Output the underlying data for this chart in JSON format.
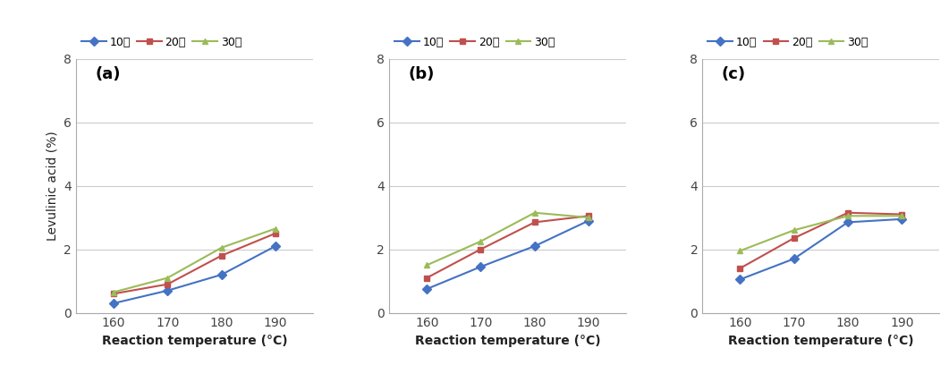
{
  "x": [
    160,
    170,
    180,
    190
  ],
  "subplots": [
    {
      "label": "(a)",
      "series": {
        "10분": [
          0.3,
          0.7,
          1.2,
          2.1
        ],
        "20분": [
          0.6,
          0.9,
          1.8,
          2.5
        ],
        "30분": [
          0.65,
          1.1,
          2.05,
          2.65
        ]
      }
    },
    {
      "label": "(b)",
      "series": {
        "10분": [
          0.75,
          1.45,
          2.1,
          2.9
        ],
        "20분": [
          1.1,
          2.0,
          2.85,
          3.05
        ],
        "30분": [
          1.5,
          2.25,
          3.15,
          3.0
        ]
      }
    },
    {
      "label": "(c)",
      "series": {
        "10분": [
          1.05,
          1.7,
          2.85,
          2.95
        ],
        "20분": [
          1.4,
          2.35,
          3.15,
          3.1
        ],
        "30분": [
          1.95,
          2.6,
          3.05,
          3.05
        ]
      }
    }
  ],
  "colors": {
    "10분": "#4472C4",
    "20분": "#C0504D",
    "30분": "#9BBB59"
  },
  "markers": {
    "10분": "D",
    "20분": "s",
    "30분": "^"
  },
  "xlabel": "Reaction temperature (°C)",
  "ylabel": "Levulinic acid (%)",
  "ylim": [
    0,
    8
  ],
  "yticks": [
    0,
    2,
    4,
    6,
    8
  ],
  "xticks": [
    160,
    170,
    180,
    190
  ],
  "legend_labels": [
    "10분",
    "20분",
    "30분"
  ],
  "background_color": "#ffffff",
  "grid_color": "#cccccc",
  "spine_color": "#aaaaaa"
}
